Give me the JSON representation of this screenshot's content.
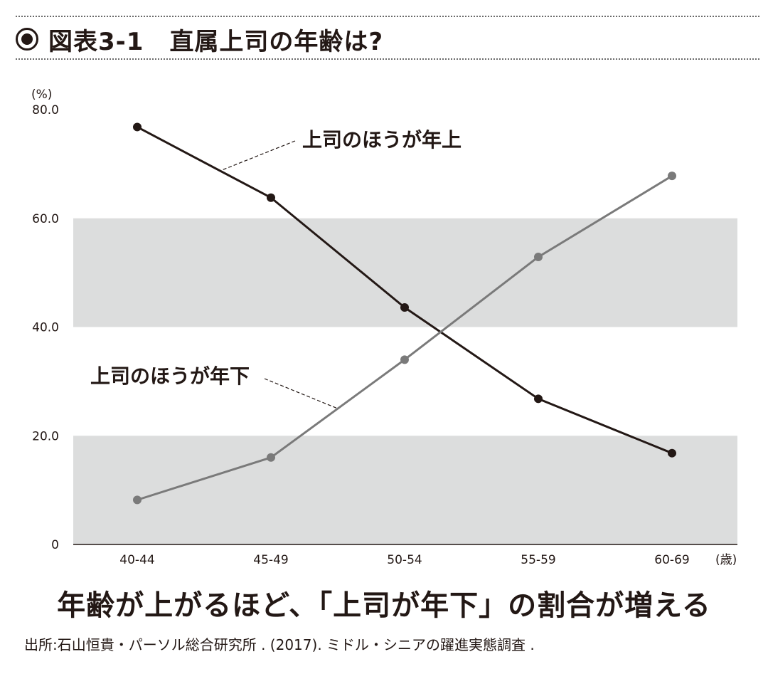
{
  "header": {
    "figure_number": "図表3-1",
    "figure_title": "直属上司の年齢は?"
  },
  "chart_data": {
    "type": "line",
    "x_unit": "(歳)",
    "y_unit": "(%)",
    "categories": [
      "40-44",
      "45-49",
      "50-54",
      "55-59",
      "60-69"
    ],
    "y_ticks": [
      "0",
      "20.0",
      "40.0",
      "60.0",
      "80.0"
    ],
    "ylim": [
      0,
      80
    ],
    "shaded_bands": [
      [
        0,
        20
      ],
      [
        40,
        60
      ]
    ],
    "series": [
      {
        "name": "上司のほうが年上",
        "values": [
          76.8,
          63.8,
          43.6,
          26.8,
          16.8
        ],
        "color": "#231815"
      },
      {
        "name": "上司のほうが年下",
        "values": [
          8.2,
          16.0,
          34.0,
          52.9,
          67.8
        ],
        "color": "#7a7a7a"
      }
    ],
    "band_color": "#dcdddd"
  },
  "tagline": "年齢が上がるほど、「上司が年下」の割合が増える",
  "source": "出所:石山恒貴・パーソル総合研究所 . (2017). ミドル・シニアの躍進実態調査 ."
}
